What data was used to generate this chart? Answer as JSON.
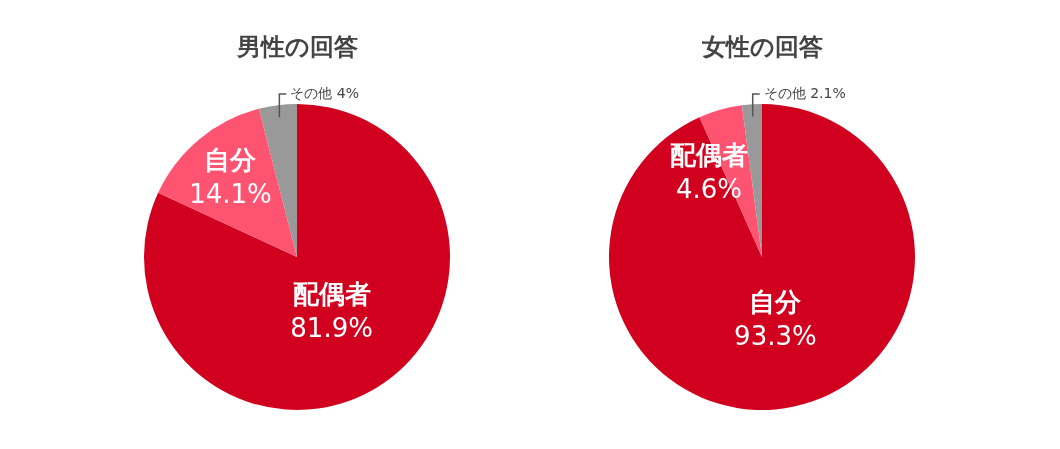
{
  "chart_data": [
    {
      "type": "pie",
      "title": "男性の回答",
      "categories": [
        "配偶者",
        "自分",
        "その他"
      ],
      "values": [
        81.9,
        14.1,
        4
      ],
      "colors": [
        "#d0001e",
        "#ff5372",
        "#999999"
      ],
      "value_labels": [
        "81.9%",
        "14.1%",
        "4%"
      ]
    },
    {
      "type": "pie",
      "title": "女性の回答",
      "categories": [
        "自分",
        "配偶者",
        "その他"
      ],
      "values": [
        93.3,
        4.6,
        2.1
      ],
      "colors": [
        "#d0001e",
        "#ff5372",
        "#999999"
      ],
      "value_labels": [
        "93.3%",
        "4.6%",
        "2.1%"
      ]
    }
  ]
}
